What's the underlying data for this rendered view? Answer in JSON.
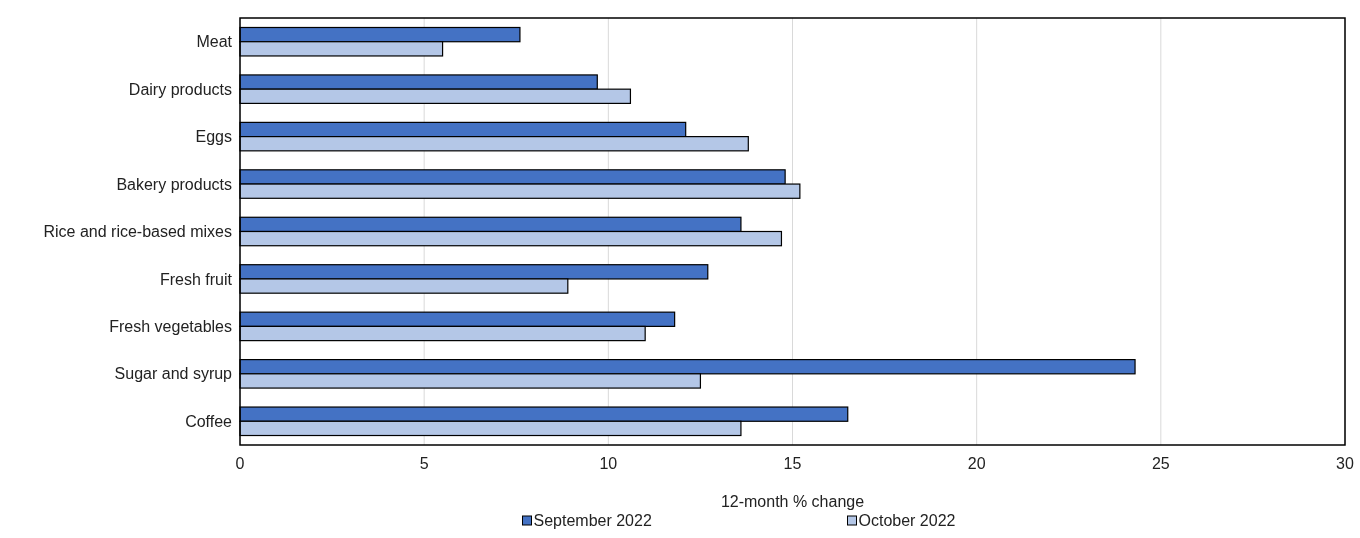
{
  "chart_data": {
    "type": "bar",
    "orientation": "horizontal",
    "xlabel": "12-month % change",
    "categories": [
      "Meat",
      "Dairy products",
      "Eggs",
      "Bakery products",
      "Rice and rice-based mixes",
      "Fresh fruit",
      "Fresh vegetables",
      "Sugar and syrup",
      "Coffee"
    ],
    "series": [
      {
        "name": "September 2022",
        "color": "#4472c4",
        "values": [
          7.6,
          9.7,
          12.1,
          14.8,
          13.6,
          12.7,
          11.8,
          24.3,
          16.5
        ]
      },
      {
        "name": "October 2022",
        "color": "#b4c7e7",
        "values": [
          5.5,
          10.6,
          13.8,
          15.2,
          14.7,
          8.9,
          11.0,
          12.5,
          13.6
        ]
      }
    ],
    "xlim": [
      0,
      30
    ],
    "xticks": [
      0,
      5,
      10,
      15,
      20,
      25,
      30
    ],
    "grid": "x",
    "legend": "bottom"
  }
}
